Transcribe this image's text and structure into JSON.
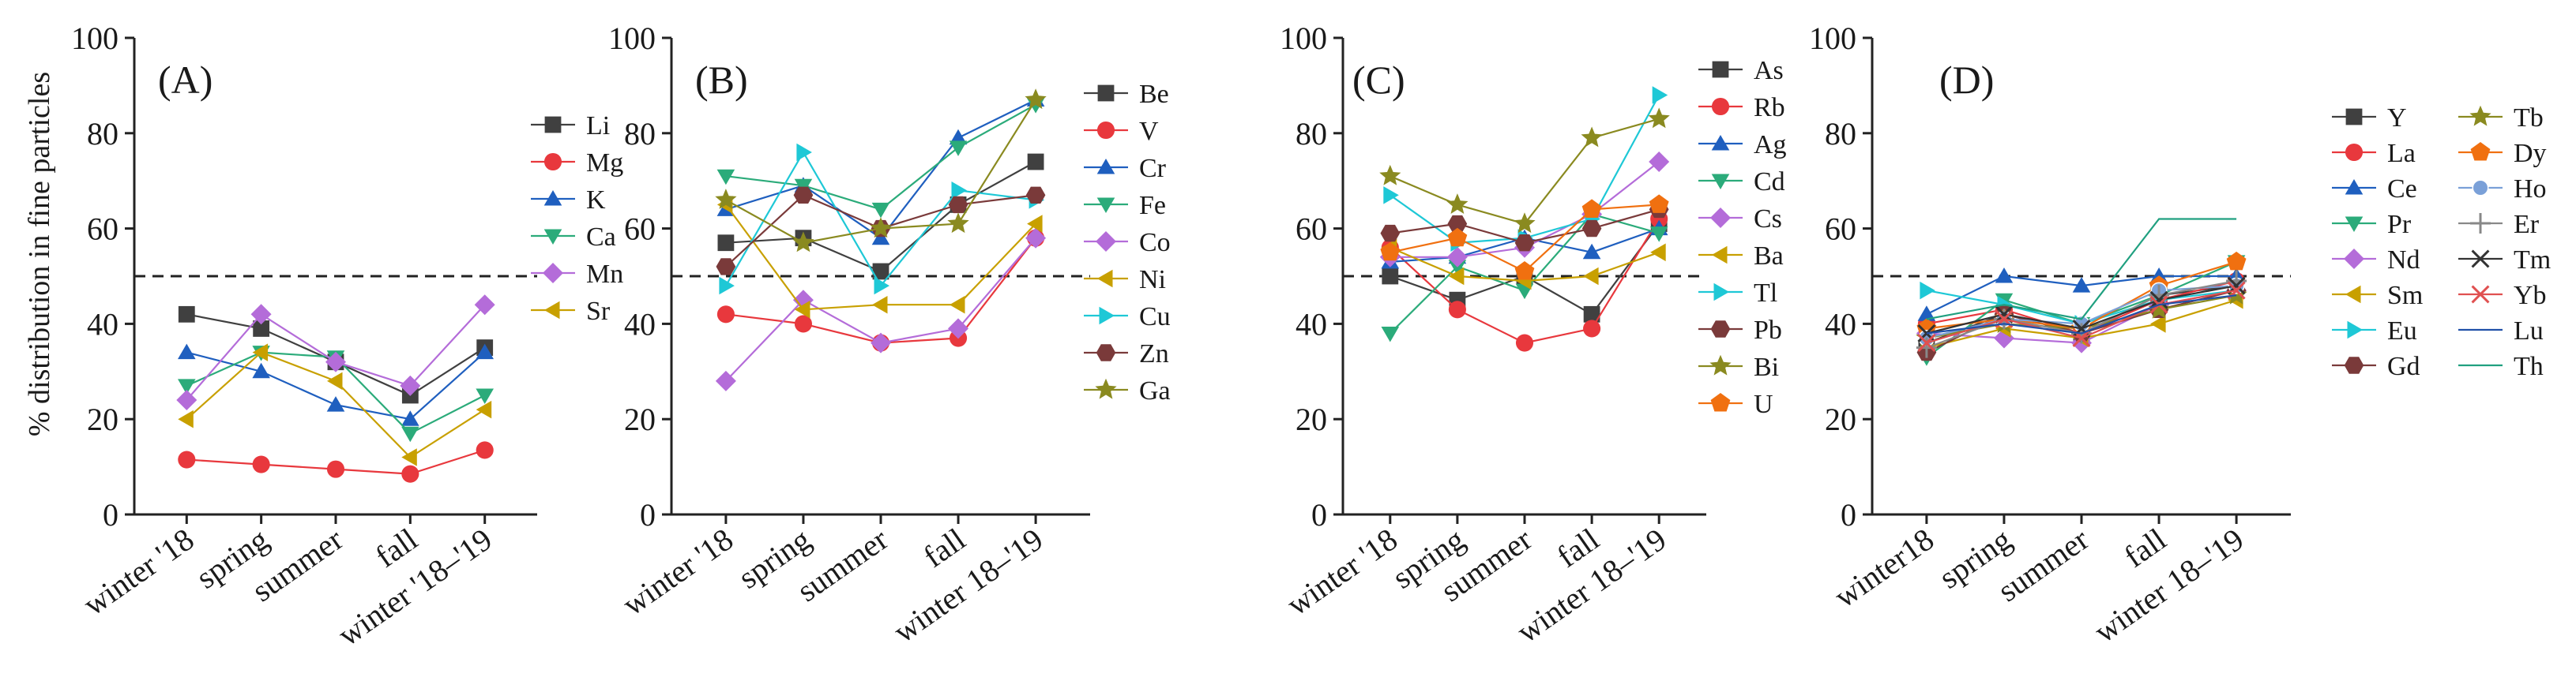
{
  "chart_data": {
    "ylabel": "% distribution in fine particles",
    "reference_line": 50,
    "panels": [
      {
        "type": "line",
        "label": "(A)",
        "ylim": [
          0,
          100
        ],
        "yticks": [
          0,
          20,
          40,
          60,
          80,
          100
        ],
        "categories": [
          "winter '18",
          "spring",
          "summer",
          "fall",
          "winter '18–'19"
        ],
        "series": [
          {
            "name": "Li",
            "marker": "square",
            "color": "#404040",
            "values": [
              42,
              39,
              32,
              25,
              35
            ]
          },
          {
            "name": "Mg",
            "marker": "circle",
            "color": "#e8383d",
            "values": [
              11.5,
              10.5,
              9.5,
              8.5,
              13.5
            ]
          },
          {
            "name": "K",
            "marker": "triangle-up",
            "color": "#1f5fbf",
            "values": [
              34,
              30,
              23,
              20,
              34
            ]
          },
          {
            "name": "Ca",
            "marker": "triangle-down",
            "color": "#2bab7a",
            "values": [
              27,
              34,
              33,
              17,
              25
            ]
          },
          {
            "name": "Mn",
            "marker": "diamond",
            "color": "#b46cd9",
            "values": [
              24,
              42,
              32,
              27,
              44
            ]
          },
          {
            "name": "Sr",
            "marker": "triangle-left",
            "color": "#c8a000",
            "values": [
              20,
              34,
              28,
              12,
              22
            ]
          }
        ]
      },
      {
        "type": "line",
        "label": "(B)",
        "ylim": [
          0,
          100
        ],
        "yticks": [
          0,
          20,
          40,
          60,
          80,
          100
        ],
        "categories": [
          "winter '18",
          "spring",
          "summer",
          "fall",
          "winter 18–'19"
        ],
        "series": [
          {
            "name": "Be",
            "marker": "square",
            "color": "#404040",
            "values": [
              57,
              58,
              51,
              65,
              74
            ]
          },
          {
            "name": "V",
            "marker": "circle",
            "color": "#e8383d",
            "values": [
              42,
              40,
              36,
              37,
              58
            ]
          },
          {
            "name": "Cr",
            "marker": "triangle-up",
            "color": "#1f5fbf",
            "values": [
              64,
              69,
              58,
              79,
              87
            ]
          },
          {
            "name": "Fe",
            "marker": "triangle-down",
            "color": "#2bab7a",
            "values": [
              71,
              69,
              64,
              77,
              86
            ]
          },
          {
            "name": "Co",
            "marker": "diamond",
            "color": "#b46cd9",
            "values": [
              28,
              45,
              36,
              39,
              58
            ]
          },
          {
            "name": "Ni",
            "marker": "triangle-left",
            "color": "#c8a000",
            "values": [
              65,
              43,
              44,
              44,
              61
            ]
          },
          {
            "name": "Cu",
            "marker": "triangle-right",
            "color": "#1ec8d6",
            "values": [
              48,
              76,
              48,
              68,
              66
            ]
          },
          {
            "name": "Zn",
            "marker": "hexagon",
            "color": "#7a3a3a",
            "values": [
              52,
              67,
              60,
              65,
              67
            ]
          },
          {
            "name": "Ga",
            "marker": "star",
            "color": "#8a8a20",
            "values": [
              66,
              57,
              60,
              61,
              87
            ]
          }
        ]
      },
      {
        "type": "line",
        "label": "(C)",
        "ylim": [
          0,
          100
        ],
        "yticks": [
          0,
          20,
          40,
          60,
          80,
          100
        ],
        "categories": [
          "winter '18",
          "spring",
          "summer",
          "fall",
          "winter 18–'19"
        ],
        "series": [
          {
            "name": "As",
            "marker": "square",
            "color": "#404040",
            "values": [
              50,
              45,
              50,
              42,
              61
            ]
          },
          {
            "name": "Rb",
            "marker": "circle",
            "color": "#e8383d",
            "values": [
              56,
              43,
              36,
              39,
              62
            ]
          },
          {
            "name": "Ag",
            "marker": "triangle-up",
            "color": "#1f5fbf",
            "values": [
              53,
              54,
              58,
              55,
              60
            ]
          },
          {
            "name": "Cd",
            "marker": "triangle-down",
            "color": "#2bab7a",
            "values": [
              38,
              52,
              47,
              63,
              59
            ]
          },
          {
            "name": "Cs",
            "marker": "diamond",
            "color": "#b46cd9",
            "values": [
              54,
              54,
              56,
              63,
              74
            ]
          },
          {
            "name": "Ba",
            "marker": "triangle-left",
            "color": "#c8a000",
            "values": [
              56,
              50,
              49,
              50,
              55
            ]
          },
          {
            "name": "Tl",
            "marker": "triangle-right",
            "color": "#1ec8d6",
            "values": [
              67,
              57,
              58,
              62,
              88
            ]
          },
          {
            "name": "Pb",
            "marker": "hexagon",
            "color": "#7a3a3a",
            "values": [
              59,
              61,
              57,
              60,
              64
            ]
          },
          {
            "name": "Bi",
            "marker": "star",
            "color": "#8a8a20",
            "values": [
              71,
              65,
              61,
              79,
              83
            ]
          },
          {
            "name": "U",
            "marker": "pentagon",
            "color": "#f07010",
            "values": [
              55,
              58,
              51,
              64,
              65
            ]
          }
        ]
      },
      {
        "type": "line",
        "label": "(D)",
        "ylim": [
          0,
          100
        ],
        "yticks": [
          0,
          20,
          40,
          60,
          80,
          100
        ],
        "categories": [
          "winter18",
          "spring",
          "summer",
          "fall",
          "winter 18–'19"
        ],
        "series": [
          {
            "name": "Y",
            "marker": "square",
            "color": "#404040",
            "values": [
              36,
              42,
              38,
              46,
              48
            ]
          },
          {
            "name": "La",
            "marker": "circle",
            "color": "#e8383d",
            "values": [
              40,
              43,
              38,
              45,
              49
            ]
          },
          {
            "name": "Ce",
            "marker": "triangle-up",
            "color": "#1f5fbf",
            "values": [
              42,
              50,
              48,
              50,
              50
            ]
          },
          {
            "name": "Pr",
            "marker": "triangle-down",
            "color": "#2bab7a",
            "values": [
              33,
              45,
              40,
              46,
              53
            ]
          },
          {
            "name": "Nd",
            "marker": "diamond",
            "color": "#b46cd9",
            "values": [
              38,
              37,
              36,
              44,
              47
            ]
          },
          {
            "name": "Sm",
            "marker": "triangle-left",
            "color": "#c8a000",
            "values": [
              35,
              39,
              37,
              40,
              45
            ]
          },
          {
            "name": "Eu",
            "marker": "triangle-right",
            "color": "#1ec8d6",
            "values": [
              47,
              44,
              40,
              45,
              47
            ]
          },
          {
            "name": "Gd",
            "marker": "hexagon",
            "color": "#7a3a3a",
            "values": [
              34,
              42,
              38,
              43,
              47
            ]
          },
          {
            "name": "Tb",
            "marker": "star",
            "color": "#8a8a20",
            "values": [
              37,
              40,
              39,
              43,
              46
            ]
          },
          {
            "name": "Dy",
            "marker": "pentagon",
            "color": "#f07010",
            "values": [
              39,
              41,
              39,
              48,
              53
            ]
          },
          {
            "name": "Ho",
            "marker": "dot",
            "color": "#7aa0d8",
            "values": [
              37,
              41,
              40,
              47,
              48
            ]
          },
          {
            "name": "Er",
            "marker": "plus",
            "color": "#888888",
            "values": [
              35,
              41,
              38,
              46,
              49
            ]
          },
          {
            "name": "Tm",
            "marker": "cross",
            "color": "#333333",
            "values": [
              38,
              42,
              39,
              45,
              48
            ]
          },
          {
            "name": "Yb",
            "marker": "cross",
            "color": "#e05050",
            "values": [
              36,
              41,
              37,
              44,
              47
            ]
          },
          {
            "name": "Lu",
            "marker": "none",
            "color": "#2050a8",
            "values": [
              38,
              40,
              38,
              44,
              46
            ]
          },
          {
            "name": "Th",
            "marker": "none",
            "color": "#20a080",
            "values": [
              41,
              44,
              41,
              62,
              62
            ]
          }
        ]
      }
    ]
  }
}
